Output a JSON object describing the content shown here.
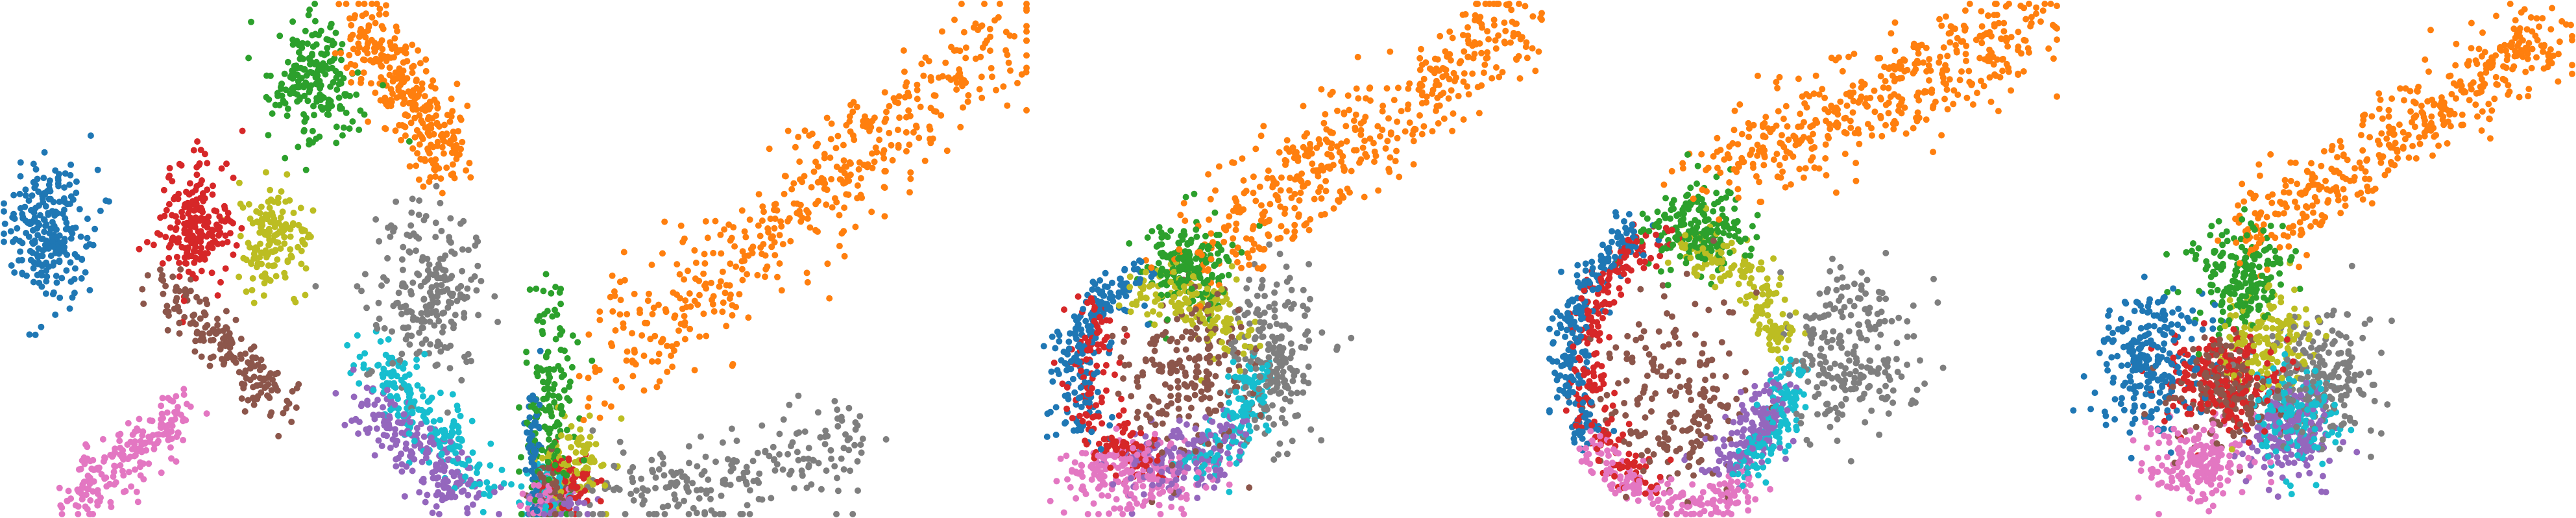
{
  "chart_data": [
    {
      "type": "scatter",
      "xlim": [
        0,
        100
      ],
      "ylim": [
        0,
        100
      ],
      "grid": false,
      "legend": "none",
      "clusters": [
        {
          "color": "#1f77b4",
          "shape": "blob",
          "points": 240,
          "cx": 9,
          "cy": 55,
          "sx": 4,
          "sy": 7
        },
        {
          "color": "#2ca02c",
          "shape": "blob",
          "points": 200,
          "cx": 61,
          "cy": 84,
          "sx": 4.5,
          "sy": 6
        },
        {
          "color": "#ff7f0e",
          "shape": "band",
          "points": 300,
          "x0": 70,
          "y0": 98,
          "x1": 88,
          "y1": 68,
          "spread": 3.2
        },
        {
          "color": "#d62728",
          "shape": "blob",
          "points": 200,
          "cx": 38,
          "cy": 56,
          "sx": 4,
          "sy": 6
        },
        {
          "color": "#bcbd22",
          "shape": "blob",
          "points": 150,
          "cx": 53,
          "cy": 54,
          "sx": 3.5,
          "sy": 5
        },
        {
          "color": "#8c564b",
          "shape": "band",
          "points": 180,
          "x0": 31,
          "y0": 45,
          "x1": 56,
          "y1": 20,
          "spread": 2.4
        },
        {
          "color": "#e377c2",
          "shape": "band",
          "points": 200,
          "x0": 14,
          "y0": 2,
          "x1": 35,
          "y1": 20,
          "spread": 2.8
        },
        {
          "color": "#7f7f7f",
          "shape": "blob",
          "points": 220,
          "cx": 84,
          "cy": 43,
          "sx": 5.5,
          "sy": 8
        },
        {
          "color": "#17becf",
          "shape": "band",
          "points": 200,
          "x0": 72,
          "y0": 31,
          "x1": 95,
          "y1": 5,
          "spread": 3
        },
        {
          "color": "#9467bd",
          "shape": "band",
          "points": 200,
          "x0": 72,
          "y0": 21,
          "x1": 92,
          "y1": 3,
          "spread": 3.2
        }
      ]
    },
    {
      "type": "scatter",
      "xlim": [
        0,
        100
      ],
      "ylim": [
        0,
        100
      ],
      "grid": false,
      "legend": "none",
      "clusters": [
        {
          "color": "#1f77b4",
          "shape": "blob",
          "points": 70,
          "cx": 3,
          "cy": 10,
          "sx": 0.8,
          "sy": 8
        },
        {
          "color": "#2ca02c",
          "shape": "blob",
          "points": 170,
          "cx": 6,
          "cy": 20,
          "sx": 2.5,
          "sy": 12
        },
        {
          "color": "#ff7f0e",
          "shape": "band",
          "points": 480,
          "x0": 18,
          "y0": 28,
          "x1": 98,
          "y1": 96,
          "spread": 5.5
        },
        {
          "color": "#d62728",
          "shape": "blob",
          "points": 70,
          "cx": 10,
          "cy": 6,
          "sx": 2.5,
          "sy": 3
        },
        {
          "color": "#bcbd22",
          "shape": "blob",
          "points": 90,
          "cx": 11,
          "cy": 10,
          "sx": 3.5,
          "sy": 4
        },
        {
          "color": "#8c564b",
          "shape": "blob",
          "points": 60,
          "cx": 6,
          "cy": 5,
          "sx": 2,
          "sy": 3
        },
        {
          "color": "#e377c2",
          "shape": "blob",
          "points": 50,
          "cx": 5,
          "cy": 3,
          "sx": 2,
          "sy": 2
        },
        {
          "color": "#7f7f7f",
          "shape": "band",
          "points": 220,
          "x0": 14,
          "y0": 2,
          "x1": 68,
          "y1": 14,
          "spread": 4.5
        },
        {
          "color": "#17becf",
          "shape": "blob",
          "points": 70,
          "cx": 6,
          "cy": 4,
          "sx": 2.5,
          "sy": 2.5
        },
        {
          "color": "#9467bd",
          "shape": "blob",
          "points": 70,
          "cx": 7,
          "cy": 2,
          "sx": 3,
          "sy": 1.5
        }
      ]
    },
    {
      "type": "scatter",
      "xlim": [
        0,
        100
      ],
      "ylim": [
        0,
        100
      ],
      "grid": false,
      "legend": "none",
      "clusters": [
        {
          "color": "#1f77b4",
          "shape": "arc",
          "points": 200,
          "cx": 25,
          "cy": 28,
          "r": 17,
          "rsy": 19,
          "a0": 100,
          "a1": 215,
          "spread": 2.5
        },
        {
          "color": "#2ca02c",
          "shape": "blob",
          "points": 180,
          "cx": 30,
          "cy": 48,
          "sx": 5,
          "sy": 4.5
        },
        {
          "color": "#ff7f0e",
          "shape": "band",
          "points": 450,
          "x0": 32,
          "y0": 50,
          "x1": 97,
          "y1": 98,
          "spread": 4.8
        },
        {
          "color": "#d62728",
          "shape": "arc",
          "points": 170,
          "cx": 26,
          "cy": 28,
          "r": 16,
          "rsy": 18,
          "a0": 140,
          "a1": 260,
          "spread": 2.5
        },
        {
          "color": "#bcbd22",
          "shape": "arc",
          "points": 150,
          "cx": 26,
          "cy": 28,
          "r": 14,
          "rsy": 16,
          "a0": 10,
          "a1": 110,
          "spread": 3
        },
        {
          "color": "#8c564b",
          "shape": "blob",
          "points": 200,
          "cx": 30,
          "cy": 26,
          "sx": 6,
          "sy": 8
        },
        {
          "color": "#e377c2",
          "shape": "blob",
          "points": 200,
          "cx": 18,
          "cy": 8,
          "sx": 7,
          "sy": 3.5
        },
        {
          "color": "#7f7f7f",
          "shape": "blob",
          "points": 200,
          "cx": 47,
          "cy": 30,
          "sx": 4.5,
          "sy": 8
        },
        {
          "color": "#17becf",
          "shape": "arc",
          "points": 140,
          "cx": 26,
          "cy": 28,
          "r": 17,
          "rsy": 19,
          "a0": 290,
          "a1": 360,
          "spread": 2.5
        },
        {
          "color": "#9467bd",
          "shape": "arc",
          "points": 160,
          "cx": 26,
          "cy": 28,
          "r": 16,
          "rsy": 18,
          "a0": 250,
          "a1": 320,
          "spread": 3
        }
      ]
    },
    {
      "type": "scatter",
      "xlim": [
        0,
        100
      ],
      "ylim": [
        0,
        100
      ],
      "grid": false,
      "legend": "none",
      "clusters": [
        {
          "color": "#1f77b4",
          "shape": "arc",
          "points": 230,
          "cx": 27,
          "cy": 30,
          "r": 23,
          "rsy": 28,
          "a0": 115,
          "a1": 215,
          "spread": 1.6
        },
        {
          "color": "#2ca02c",
          "shape": "blob",
          "points": 200,
          "cx": 29,
          "cy": 56,
          "sx": 5,
          "sy": 4.5
        },
        {
          "color": "#ff7f0e",
          "shape": "band",
          "points": 430,
          "x0": 33,
          "y0": 68,
          "x1": 97,
          "y1": 96,
          "spread": 5
        },
        {
          "color": "#d62728",
          "shape": "arc",
          "points": 230,
          "cx": 27,
          "cy": 30,
          "r": 20,
          "rsy": 25,
          "a0": 100,
          "a1": 250,
          "spread": 1.8
        },
        {
          "color": "#bcbd22",
          "shape": "arc",
          "points": 170,
          "cx": 27,
          "cy": 30,
          "r": 18,
          "rsy": 22,
          "a0": 5,
          "a1": 95,
          "spread": 2.2
        },
        {
          "color": "#8c564b",
          "shape": "blob",
          "points": 200,
          "cx": 24,
          "cy": 22,
          "sx": 8,
          "sy": 10
        },
        {
          "color": "#e377c2",
          "shape": "arc",
          "points": 170,
          "cx": 27,
          "cy": 30,
          "r": 23,
          "rsy": 28,
          "a0": 215,
          "a1": 305,
          "spread": 1.6
        },
        {
          "color": "#7f7f7f",
          "shape": "blob",
          "points": 230,
          "cx": 59,
          "cy": 32,
          "sx": 6,
          "sy": 8
        },
        {
          "color": "#17becf",
          "shape": "arc",
          "points": 150,
          "cx": 27,
          "cy": 30,
          "r": 20,
          "rsy": 25,
          "a0": 300,
          "a1": 360,
          "spread": 2
        },
        {
          "color": "#9467bd",
          "shape": "arc",
          "points": 150,
          "cx": 27,
          "cy": 30,
          "r": 18,
          "rsy": 22,
          "a0": 290,
          "a1": 345,
          "spread": 2.5
        }
      ]
    },
    {
      "type": "scatter",
      "xlim": [
        0,
        100
      ],
      "ylim": [
        0,
        100
      ],
      "grid": false,
      "legend": "none",
      "clusters": [
        {
          "color": "#1f77b4",
          "shape": "blob",
          "points": 240,
          "cx": 17,
          "cy": 30,
          "sx": 5,
          "sy": 7
        },
        {
          "color": "#2ca02c",
          "shape": "blob",
          "points": 190,
          "cx": 35,
          "cy": 46,
          "sx": 4.5,
          "sy": 5
        },
        {
          "color": "#ff7f0e",
          "shape": "band",
          "points": 430,
          "x0": 35,
          "y0": 54,
          "x1": 98,
          "y1": 96,
          "spread": 4
        },
        {
          "color": "#d62728",
          "shape": "blob",
          "points": 220,
          "cx": 30,
          "cy": 26,
          "sx": 6,
          "sy": 5
        },
        {
          "color": "#bcbd22",
          "shape": "blob",
          "points": 150,
          "cx": 40,
          "cy": 34,
          "sx": 4.5,
          "sy": 5
        },
        {
          "color": "#8c564b",
          "shape": "blob",
          "points": 180,
          "cx": 32,
          "cy": 24,
          "sx": 5,
          "sy": 5
        },
        {
          "color": "#e377c2",
          "shape": "blob",
          "points": 190,
          "cx": 26,
          "cy": 10,
          "sx": 5,
          "sy": 4
        },
        {
          "color": "#7f7f7f",
          "shape": "blob",
          "points": 220,
          "cx": 50,
          "cy": 26,
          "sx": 5,
          "sy": 6
        },
        {
          "color": "#17becf",
          "shape": "blob",
          "points": 160,
          "cx": 46,
          "cy": 20,
          "sx": 4.5,
          "sy": 5
        },
        {
          "color": "#9467bd",
          "shape": "blob",
          "points": 180,
          "cx": 44,
          "cy": 16,
          "sx": 4.5,
          "sy": 4.5
        }
      ]
    }
  ]
}
